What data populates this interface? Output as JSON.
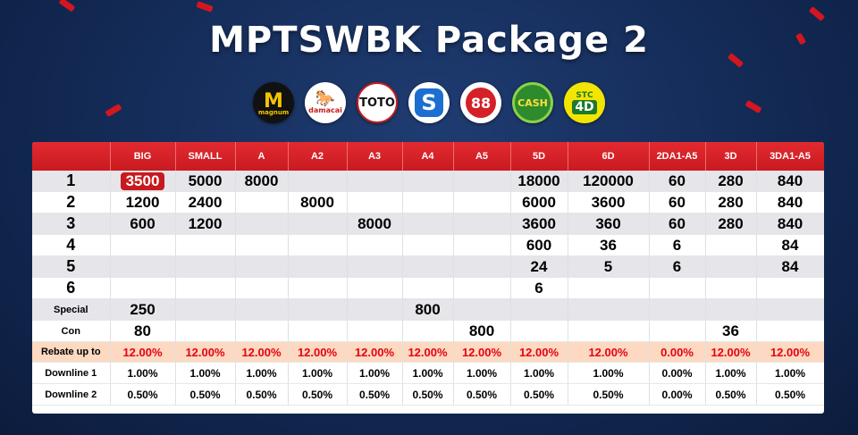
{
  "title": "MPTSWBK Package 2",
  "logos": [
    {
      "name": "magnum-logo",
      "text": "M",
      "sub": "magnum"
    },
    {
      "name": "damacai-logo",
      "text": "damacai"
    },
    {
      "name": "toto-logo",
      "text": "TOTO"
    },
    {
      "name": "singapore-pools-logo",
      "text": "S"
    },
    {
      "name": "88-logo",
      "text": "88"
    },
    {
      "name": "cash-logo",
      "text": "CASH"
    },
    {
      "name": "stc-logo",
      "text": "STC",
      "sub": "4D"
    }
  ],
  "table": {
    "headers": [
      "",
      "BIG",
      "SMALL",
      "A",
      "A2",
      "A3",
      "A4",
      "A5",
      "5D",
      "6D",
      "2DA1-A5",
      "3D",
      "3DA1-A5"
    ],
    "rows": [
      {
        "label": "1",
        "cells": [
          "3500",
          "5000",
          "8000",
          "",
          "",
          "",
          "",
          "18000",
          "120000",
          "60",
          "280",
          "840"
        ]
      },
      {
        "label": "2",
        "cells": [
          "1200",
          "2400",
          "",
          "8000",
          "",
          "",
          "",
          "6000",
          "3600",
          "60",
          "280",
          "840"
        ]
      },
      {
        "label": "3",
        "cells": [
          "600",
          "1200",
          "",
          "",
          "8000",
          "",
          "",
          "3600",
          "360",
          "60",
          "280",
          "840"
        ]
      },
      {
        "label": "4",
        "cells": [
          "",
          "",
          "",
          "",
          "",
          "",
          "",
          "600",
          "36",
          "6",
          "",
          "84"
        ]
      },
      {
        "label": "5",
        "cells": [
          "",
          "",
          "",
          "",
          "",
          "",
          "",
          "24",
          "5",
          "6",
          "",
          "84"
        ]
      },
      {
        "label": "6",
        "cells": [
          "",
          "",
          "",
          "",
          "",
          "",
          "",
          "6",
          "",
          "",
          "",
          ""
        ]
      },
      {
        "label": "Special",
        "cells": [
          "250",
          "",
          "",
          "",
          "",
          "800",
          "",
          "",
          "",
          "",
          "",
          ""
        ]
      },
      {
        "label": "Con",
        "cells": [
          "80",
          "",
          "",
          "",
          "",
          "",
          "800",
          "",
          "",
          "",
          "36",
          ""
        ]
      }
    ],
    "rebate": {
      "label": "Rebate up to",
      "cells": [
        "12.00%",
        "12.00%",
        "12.00%",
        "12.00%",
        "12.00%",
        "12.00%",
        "12.00%",
        "12.00%",
        "12.00%",
        "0.00%",
        "12.00%",
        "12.00%"
      ]
    },
    "downline1": {
      "label": "Downline 1",
      "cells": [
        "1.00%",
        "1.00%",
        "1.00%",
        "1.00%",
        "1.00%",
        "1.00%",
        "1.00%",
        "1.00%",
        "1.00%",
        "0.00%",
        "1.00%",
        "1.00%"
      ]
    },
    "downline2": {
      "label": "Downline 2",
      "cells": [
        "0.50%",
        "0.50%",
        "0.50%",
        "0.50%",
        "0.50%",
        "0.50%",
        "0.50%",
        "0.50%",
        "0.50%",
        "0.00%",
        "0.50%",
        "0.50%"
      ]
    }
  }
}
